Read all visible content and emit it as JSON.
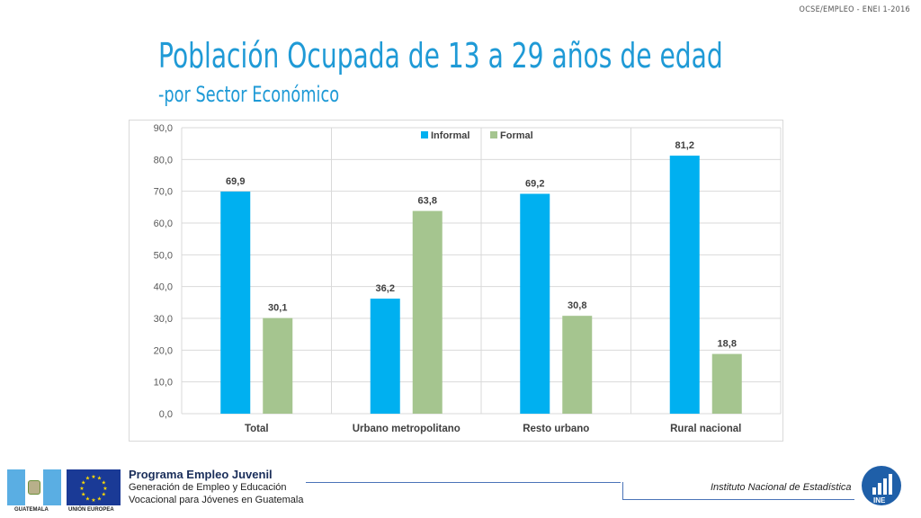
{
  "header_note": "OCSE/EMPLEO - ENEI 1-2016",
  "title": "Población Ocupada de 13 a 29 años de edad",
  "subtitle": "-por Sector Económico",
  "chart_data": {
    "type": "bar",
    "categories": [
      "Total",
      "Urbano metropolitano",
      "Resto urbano",
      "Rural nacional"
    ],
    "series": [
      {
        "name": "Informal",
        "values": [
          69.9,
          36.2,
          69.2,
          81.2
        ],
        "value_labels": [
          "69,9",
          "36,2",
          "69,2",
          "81,2"
        ],
        "color": "#00b0f0"
      },
      {
        "name": "Formal",
        "values": [
          30.1,
          63.8,
          30.8,
          18.8
        ],
        "value_labels": [
          "30,1",
          "63,8",
          "30,8",
          "18,8"
        ],
        "color": "#a5c58f"
      }
    ],
    "ylim": [
      0,
      90
    ],
    "yticks": [
      0,
      10,
      20,
      30,
      40,
      50,
      60,
      70,
      80,
      90
    ],
    "ytick_labels": [
      "0,0",
      "10,0",
      "20,0",
      "30,0",
      "40,0",
      "50,0",
      "60,0",
      "70,0",
      "80,0",
      "90,0"
    ],
    "legend_position": "top-center",
    "grid": true
  },
  "footer": {
    "flag_label": "GUATEMALA",
    "eu_label": "UNIÓN EUROPEA",
    "program_title": "Programa Empleo Juvenil",
    "program_line1": "Generación de Empleo y Educación",
    "program_line2": "Vocacional para Jóvenes en Guatemala",
    "institute": "Instituto Nacional de Estadística",
    "logo_text": "INE"
  }
}
